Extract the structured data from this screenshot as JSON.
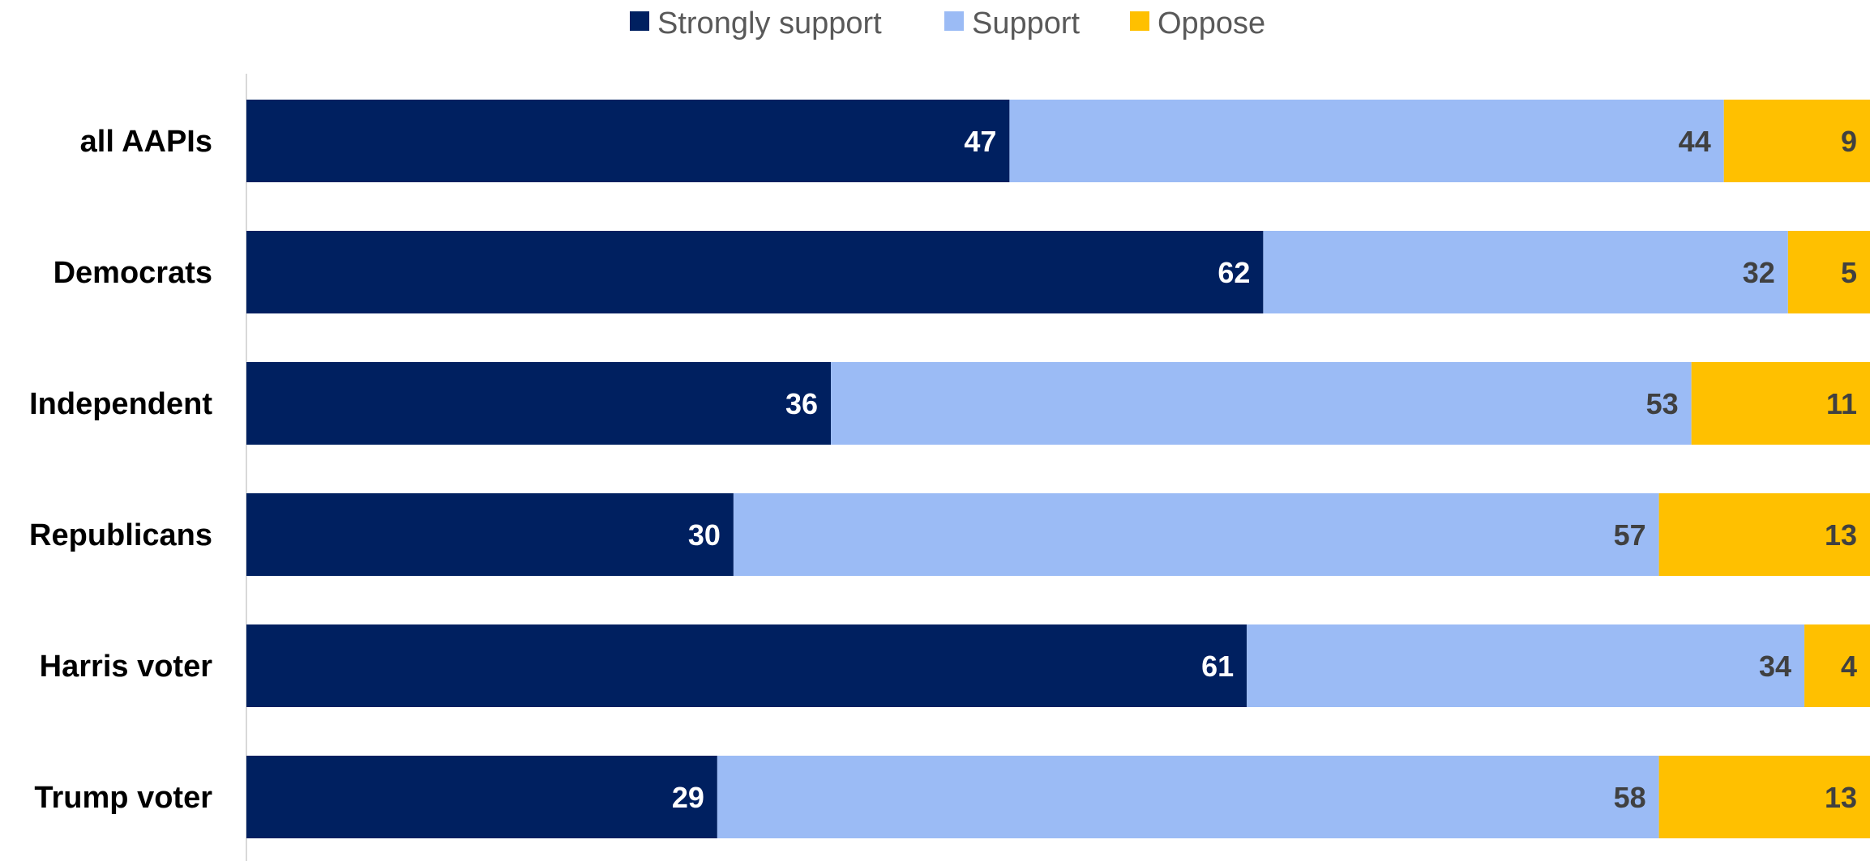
{
  "chart_data": {
    "type": "bar",
    "orientation": "horizontal",
    "stacking": "percent",
    "categories": [
      "all AAPIs",
      "Democrats",
      "Independent",
      "Republicans",
      "Harris voter",
      "Trump voter"
    ],
    "series": [
      {
        "name": "Strongly support",
        "color": "#002060",
        "label_color": "#ffffff",
        "values": [
          47,
          62,
          36,
          30,
          61,
          29
        ]
      },
      {
        "name": "Support",
        "color": "#9BBBF5",
        "label_color": "#404040",
        "values": [
          44,
          32,
          53,
          57,
          34,
          58
        ]
      },
      {
        "name": "Oppose",
        "color": "#FFC000",
        "label_color": "#404040",
        "values": [
          9,
          5,
          11,
          13,
          4,
          13
        ]
      }
    ],
    "title": "",
    "xlabel": "",
    "ylabel": "",
    "xlim": [
      0,
      100
    ],
    "grid": false,
    "legend_position": "top"
  }
}
